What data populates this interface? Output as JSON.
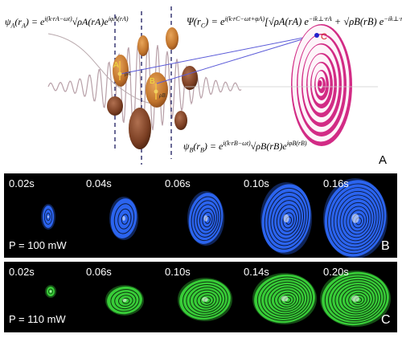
{
  "panel_a": {
    "eq_psi_a": "ψA(rA) = e^{i(k·rA − ωt)} √ρA(rA) e^{iφA(rA)}",
    "eq_psi_a_lhs": "ψ",
    "eq_psi_a_sub": "A",
    "eq_psi_a_arg": "(r",
    "eq_psi_a_argsub": "A",
    "eq_psi_a_rhs": ") = e",
    "eq_psi_a_exp": "i(k·rA−ωt)",
    "eq_psi_a_root": "√ρA(rA)",
    "eq_psi_a_phase": "e",
    "eq_psi_a_phase_exp": "iφA(rA)",
    "eq_psi_b_lhs": "ψ",
    "eq_psi_b_sub": "B",
    "eq_psi_b_arg": "(r",
    "eq_psi_b_argsub": "B",
    "eq_psi_b_rhs": ") = e",
    "eq_psi_b_exp": "i(k·rB−ωt)",
    "eq_psi_b_root": "√ρB(rB)",
    "eq_psi_b_phase": "e",
    "eq_psi_b_phase_exp": "iφB(rB)",
    "eq_psi_c_lhs": "Ψ(r",
    "eq_psi_c_sub": "C",
    "eq_psi_c_rhs": ") = e",
    "eq_psi_c_exp": "i(k·rC−ωt+φA)",
    "eq_psi_c_body": "[√ρA(rA) e",
    "eq_psi_c_exp2": "−ik⊥·rA",
    "eq_psi_c_body2": " + √ρB(rB) e",
    "eq_psi_c_exp3": "−ik⊥·rB",
    "eq_psi_c_close": "]",
    "label_a": "A",
    "label_b": "B",
    "label_c": "C",
    "label_rho_a": "ρA",
    "label_rho_b": "ρB",
    "panel_letter": "A"
  },
  "panel_b": {
    "power": "P = 100 mW",
    "times": [
      "0.02s",
      "0.04s",
      "0.06s",
      "0.10s",
      "0.16s"
    ],
    "letter": "B",
    "color": "#2f6bff"
  },
  "panel_c": {
    "power": "P = 110 mW",
    "times": [
      "0.02s",
      "0.06s",
      "0.10s",
      "0.14s",
      "0.20s"
    ],
    "letter": "C",
    "color": "#3cdc3c"
  },
  "colors": {
    "ring_magenta": "#d0207e",
    "blob_orange": "#c8782e",
    "blob_brown": "#7a3e22",
    "line_blue": "#4a4ac8"
  }
}
